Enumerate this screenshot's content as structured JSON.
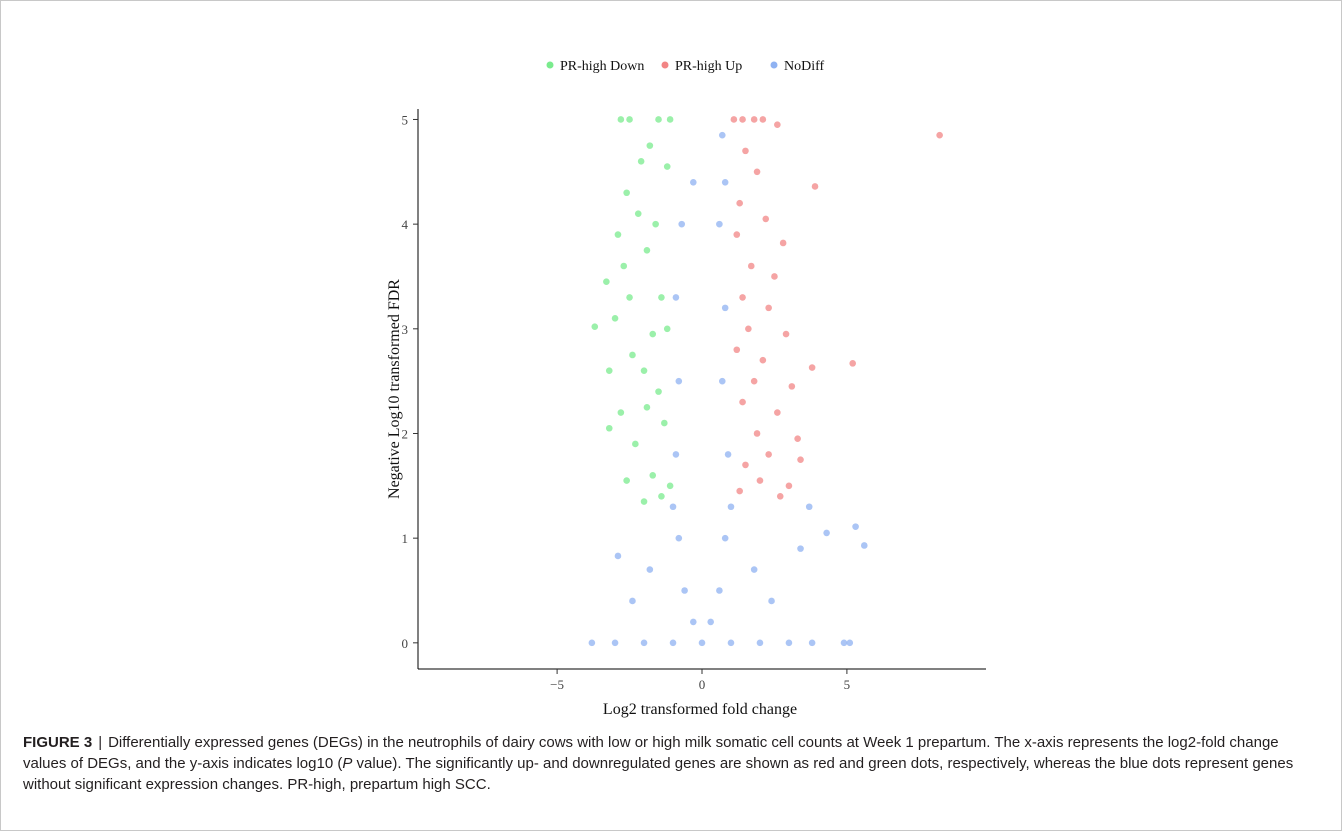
{
  "figure_label": "FIGURE 3",
  "caption_separator": "|",
  "caption_text_1": "Differentially expressed genes (DEGs) in the neutrophils of dairy cows with low or high milk somatic cell counts at Week 1 prepartum. The x-axis represents the log2-fold change values of DEGs, and the y-axis indicates log10 (",
  "caption_italic": "P",
  "caption_text_2": " value). The significantly up- and downregulated genes are shown as red and green dots, respectively, whereas the blue dots represent genes without significant expression changes. PR-high, prepartum high SCC.",
  "chart_data": {
    "type": "scatter",
    "title": "",
    "xlabel": "Log2 transformed fold change",
    "ylabel": "Negative Log10 transformed FDR",
    "xlim": [
      -9.8,
      9.8
    ],
    "ylim": [
      -0.25,
      5.1
    ],
    "xticks": [
      -5,
      0,
      5
    ],
    "xtick_labels": [
      "−5",
      "0",
      "5"
    ],
    "yticks": [
      0,
      1,
      2,
      3,
      4,
      5
    ],
    "grid": false,
    "legend_position": "top",
    "legend": [
      {
        "name": "PR-high Down",
        "color": "#7aeb8d"
      },
      {
        "name": "PR-high Up",
        "color": "#f28585"
      },
      {
        "name": "NoDiff",
        "color": "#8fb2f2"
      }
    ],
    "series": [
      {
        "name": "PR-high Down",
        "color": "#7aeb8d",
        "points": [
          [
            -2.8,
            5.0
          ],
          [
            -2.5,
            5.0
          ],
          [
            -1.5,
            5.0
          ],
          [
            -1.1,
            5.0
          ],
          [
            -1.8,
            4.75
          ],
          [
            -2.1,
            4.6
          ],
          [
            -2.6,
            4.3
          ],
          [
            -2.2,
            4.1
          ],
          [
            -1.2,
            4.55
          ],
          [
            -1.6,
            4.0
          ],
          [
            -2.9,
            3.9
          ],
          [
            -3.3,
            3.45
          ],
          [
            -2.7,
            3.6
          ],
          [
            -1.9,
            3.75
          ],
          [
            -1.4,
            3.3
          ],
          [
            -3.7,
            3.02
          ],
          [
            -3.0,
            3.1
          ],
          [
            -2.5,
            3.3
          ],
          [
            -1.7,
            2.95
          ],
          [
            -1.2,
            3.0
          ],
          [
            -3.2,
            2.6
          ],
          [
            -2.4,
            2.75
          ],
          [
            -2.0,
            2.6
          ],
          [
            -1.5,
            2.4
          ],
          [
            -3.2,
            2.05
          ],
          [
            -2.8,
            2.2
          ],
          [
            -1.9,
            2.25
          ],
          [
            -1.3,
            2.1
          ],
          [
            -2.3,
            1.9
          ],
          [
            -1.7,
            1.6
          ],
          [
            -1.4,
            1.4
          ],
          [
            -2.0,
            1.35
          ],
          [
            -1.1,
            1.5
          ],
          [
            -2.6,
            1.55
          ]
        ]
      },
      {
        "name": "PR-high Up",
        "color": "#f28585",
        "points": [
          [
            1.1,
            5.0
          ],
          [
            1.4,
            5.0
          ],
          [
            1.8,
            5.0
          ],
          [
            2.1,
            5.0
          ],
          [
            2.6,
            4.95
          ],
          [
            8.2,
            4.85
          ],
          [
            1.5,
            4.7
          ],
          [
            1.9,
            4.5
          ],
          [
            3.9,
            4.36
          ],
          [
            1.3,
            4.2
          ],
          [
            2.2,
            4.05
          ],
          [
            1.2,
            3.9
          ],
          [
            2.8,
            3.82
          ],
          [
            1.7,
            3.6
          ],
          [
            2.5,
            3.5
          ],
          [
            1.4,
            3.3
          ],
          [
            2.3,
            3.2
          ],
          [
            1.6,
            3.0
          ],
          [
            2.9,
            2.95
          ],
          [
            1.2,
            2.8
          ],
          [
            2.1,
            2.7
          ],
          [
            5.2,
            2.67
          ],
          [
            3.8,
            2.63
          ],
          [
            1.8,
            2.5
          ],
          [
            3.1,
            2.45
          ],
          [
            1.4,
            2.3
          ],
          [
            2.6,
            2.2
          ],
          [
            1.9,
            2.0
          ],
          [
            3.3,
            1.95
          ],
          [
            2.3,
            1.8
          ],
          [
            1.5,
            1.7
          ],
          [
            3.4,
            1.75
          ],
          [
            2.0,
            1.55
          ],
          [
            3.0,
            1.5
          ],
          [
            1.3,
            1.45
          ],
          [
            2.7,
            1.4
          ]
        ]
      },
      {
        "name": "NoDiff",
        "color": "#8fb2f2",
        "points": [
          [
            -3.8,
            0.0
          ],
          [
            -3.0,
            0.0
          ],
          [
            -2.0,
            0.0
          ],
          [
            -1.0,
            0.0
          ],
          [
            0.0,
            0.0
          ],
          [
            1.0,
            0.0
          ],
          [
            2.0,
            0.0
          ],
          [
            3.0,
            0.0
          ],
          [
            3.8,
            0.0
          ],
          [
            4.9,
            0.0
          ],
          [
            5.1,
            0.0
          ],
          [
            -0.3,
            0.2
          ],
          [
            0.3,
            0.2
          ],
          [
            -0.6,
            0.5
          ],
          [
            0.6,
            0.5
          ],
          [
            -0.8,
            1.0
          ],
          [
            0.8,
            1.0
          ],
          [
            -1.0,
            1.3
          ],
          [
            1.0,
            1.3
          ],
          [
            -0.9,
            1.8
          ],
          [
            0.9,
            1.8
          ],
          [
            -0.8,
            2.5
          ],
          [
            0.7,
            2.5
          ],
          [
            -0.9,
            3.3
          ],
          [
            0.8,
            3.2
          ],
          [
            -0.7,
            4.0
          ],
          [
            0.6,
            4.0
          ],
          [
            0.8,
            4.4
          ],
          [
            -0.3,
            4.4
          ],
          [
            0.7,
            4.85
          ],
          [
            -1.8,
            0.7
          ],
          [
            1.8,
            0.7
          ],
          [
            -2.4,
            0.4
          ],
          [
            2.4,
            0.4
          ],
          [
            -2.9,
            0.83
          ],
          [
            3.7,
            1.3
          ],
          [
            4.3,
            1.05
          ],
          [
            5.3,
            1.11
          ],
          [
            5.6,
            0.93
          ],
          [
            3.4,
            0.9
          ]
        ]
      }
    ]
  }
}
